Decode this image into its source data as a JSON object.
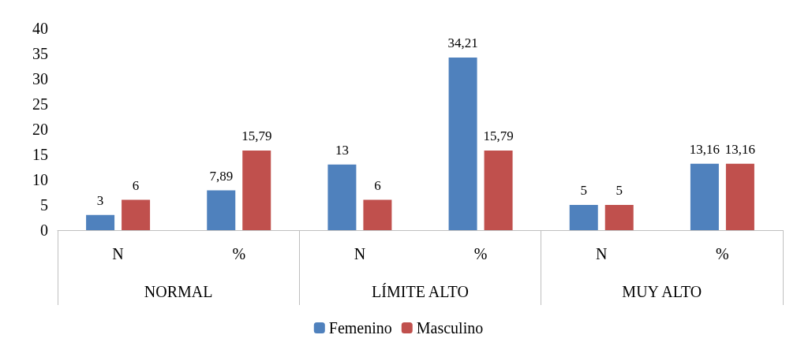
{
  "chart_data": {
    "type": "bar",
    "categories": [
      "N",
      "%",
      "N",
      "%",
      "N",
      "%"
    ],
    "annotations": [
      "NORMAL",
      "LÍMITE ALTO",
      "MUY ALTO"
    ],
    "series": [
      {
        "name": "Femenino",
        "color": "#4f81bd",
        "values": [
          3,
          7.89,
          13,
          34.21,
          5,
          13.16
        ],
        "value_labels": [
          "3",
          "7,89",
          "13",
          "34,21",
          "5",
          "13,16"
        ]
      },
      {
        "name": "Masculino",
        "color": "#c0504d",
        "values": [
          6,
          15.79,
          6,
          15.79,
          5,
          13.16
        ],
        "value_labels": [
          "6",
          "15,79",
          "6",
          "15,79",
          "5",
          "13,16"
        ]
      }
    ],
    "ylim": [
      0,
      40
    ],
    "yticks": [
      0,
      5,
      10,
      15,
      20,
      25,
      30,
      35,
      40
    ],
    "grid": false,
    "legend": "bottom"
  }
}
